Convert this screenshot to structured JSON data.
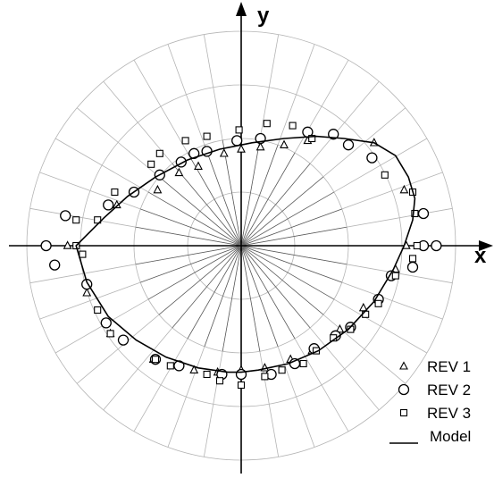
{
  "chart_data": {
    "type": "scatter",
    "subtype": "polar",
    "xlabel": "x",
    "ylabel": "y",
    "grid": true,
    "grid_rings": 4,
    "grid_ring_radii": [
      0.25,
      0.5,
      0.75,
      1.0
    ],
    "angular_step_deg": 10,
    "legend_position": "bottom-right",
    "series": [
      {
        "name": "REV 1",
        "marker": "triangle",
        "points": [
          [
            -0.81,
            0.0
          ],
          [
            -0.72,
            -0.22
          ],
          [
            -0.61,
            -0.41
          ],
          [
            -0.41,
            -0.53
          ],
          [
            -0.22,
            -0.58
          ],
          [
            -0.11,
            -0.59
          ],
          [
            0.0,
            -0.58
          ],
          [
            0.11,
            -0.57
          ],
          [
            0.23,
            -0.53
          ],
          [
            0.33,
            -0.49
          ],
          [
            0.46,
            -0.39
          ],
          [
            0.57,
            -0.29
          ],
          [
            0.72,
            -0.11
          ],
          [
            0.77,
            0.0
          ],
          [
            0.76,
            0.26
          ],
          [
            0.62,
            0.48
          ],
          [
            0.31,
            0.49
          ],
          [
            0.2,
            0.47
          ],
          [
            0.09,
            0.46
          ],
          [
            0.0,
            0.45
          ],
          [
            -0.08,
            0.43
          ],
          [
            -0.2,
            0.37
          ],
          [
            -0.29,
            0.34
          ],
          [
            -0.39,
            0.26
          ],
          [
            -0.58,
            0.19
          ]
        ]
      },
      {
        "name": "REV 2",
        "marker": "circle",
        "points": [
          [
            -0.91,
            0.0
          ],
          [
            -0.87,
            -0.09
          ],
          [
            -0.72,
            -0.18
          ],
          [
            -0.63,
            -0.36
          ],
          [
            -0.55,
            -0.44
          ],
          [
            -0.4,
            -0.53
          ],
          [
            -0.29,
            -0.56
          ],
          [
            -0.09,
            -0.6
          ],
          [
            0.0,
            -0.6
          ],
          [
            0.14,
            -0.6
          ],
          [
            0.25,
            -0.55
          ],
          [
            0.34,
            -0.48
          ],
          [
            0.44,
            -0.42
          ],
          [
            0.51,
            -0.38
          ],
          [
            0.64,
            -0.25
          ],
          [
            0.7,
            -0.14
          ],
          [
            0.8,
            -0.1
          ],
          [
            0.85,
            0.0
          ],
          [
            0.91,
            0.0
          ],
          [
            0.85,
            0.15
          ],
          [
            0.61,
            0.41
          ],
          [
            0.5,
            0.47
          ],
          [
            0.43,
            0.52
          ],
          [
            0.31,
            0.53
          ],
          [
            0.09,
            0.5
          ],
          [
            -0.02,
            0.49
          ],
          [
            -0.16,
            0.44
          ],
          [
            -0.22,
            0.43
          ],
          [
            -0.28,
            0.39
          ],
          [
            -0.38,
            0.33
          ],
          [
            -0.5,
            0.25
          ],
          [
            -0.62,
            0.19
          ],
          [
            -0.82,
            0.14
          ]
        ]
      },
      {
        "name": "REV 3",
        "marker": "square",
        "points": [
          [
            -0.77,
            0.0
          ],
          [
            -0.74,
            -0.04
          ],
          [
            -0.67,
            -0.3
          ],
          [
            -0.61,
            -0.41
          ],
          [
            -0.4,
            -0.53
          ],
          [
            -0.33,
            -0.56
          ],
          [
            -0.16,
            -0.6
          ],
          [
            -0.1,
            -0.63
          ],
          [
            0.0,
            -0.65
          ],
          [
            0.11,
            -0.61
          ],
          [
            0.19,
            -0.58
          ],
          [
            0.29,
            -0.55
          ],
          [
            0.35,
            -0.49
          ],
          [
            0.43,
            -0.43
          ],
          [
            0.51,
            -0.39
          ],
          [
            0.58,
            -0.32
          ],
          [
            0.64,
            -0.27
          ],
          [
            0.72,
            -0.14
          ],
          [
            0.8,
            -0.06
          ],
          [
            0.82,
            0.0
          ],
          [
            0.81,
            0.15
          ],
          [
            0.8,
            0.25
          ],
          [
            0.67,
            0.33
          ],
          [
            0.33,
            0.5
          ],
          [
            0.24,
            0.56
          ],
          [
            0.12,
            0.57
          ],
          [
            -0.01,
            0.54
          ],
          [
            -0.16,
            0.51
          ],
          [
            -0.26,
            0.49
          ],
          [
            -0.38,
            0.43
          ],
          [
            -0.42,
            0.38
          ],
          [
            -0.59,
            0.25
          ],
          [
            -0.67,
            0.12
          ],
          [
            -0.77,
            0.12
          ]
        ]
      },
      {
        "name": "Model",
        "marker": "line",
        "points": [
          [
            -0.77,
            0.0
          ],
          [
            -0.72,
            -0.17
          ],
          [
            -0.62,
            -0.33
          ],
          [
            -0.49,
            -0.44
          ],
          [
            -0.35,
            -0.52
          ],
          [
            -0.2,
            -0.57
          ],
          [
            -0.06,
            -0.59
          ],
          [
            0.0,
            -0.59
          ],
          [
            0.08,
            -0.58
          ],
          [
            0.22,
            -0.55
          ],
          [
            0.36,
            -0.49
          ],
          [
            0.5,
            -0.39
          ],
          [
            0.62,
            -0.26
          ],
          [
            0.71,
            -0.11
          ],
          [
            0.76,
            0.0
          ],
          [
            0.8,
            0.12
          ],
          [
            0.81,
            0.22
          ],
          [
            0.78,
            0.32
          ],
          [
            0.72,
            0.42
          ],
          [
            0.62,
            0.48
          ],
          [
            0.48,
            0.5
          ],
          [
            0.35,
            0.51
          ],
          [
            0.2,
            0.5
          ],
          [
            0.05,
            0.48
          ],
          [
            -0.1,
            0.45
          ],
          [
            -0.25,
            0.4
          ],
          [
            -0.4,
            0.32
          ],
          [
            -0.53,
            0.23
          ],
          [
            -0.64,
            0.13
          ],
          [
            -0.77,
            0.0
          ]
        ]
      }
    ]
  }
}
